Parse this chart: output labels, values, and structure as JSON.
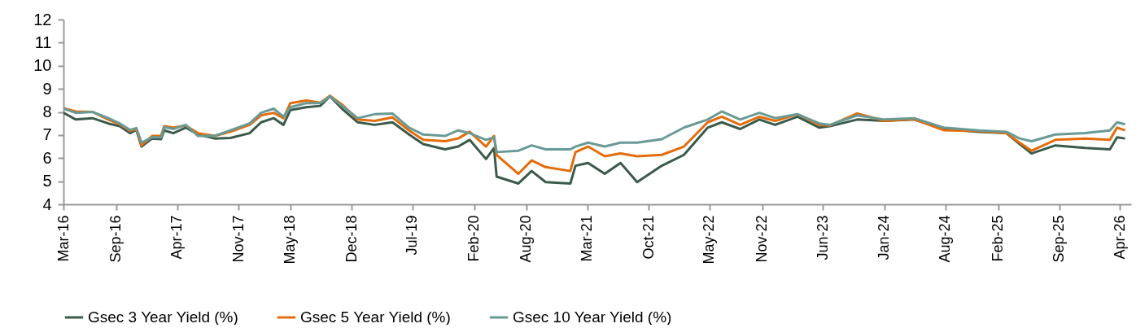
{
  "chart_data": {
    "type": "line",
    "x": [
      "2016-03-01",
      "2016-04-13",
      "2016-06-10",
      "2016-08-04",
      "2016-09-13",
      "2016-10-19",
      "2016-11-10",
      "2016-11-28",
      "2017-01-04",
      "2017-02-04",
      "2017-02-15",
      "2017-03-19",
      "2017-05-01",
      "2017-06-13",
      "2017-08-10",
      "2017-10-04",
      "2017-12-10",
      "2018-01-19",
      "2018-03-04",
      "2018-04-07",
      "2018-05-01",
      "2018-06-25",
      "2018-08-13",
      "2018-09-16",
      "2018-10-28",
      "2018-12-22",
      "2019-02-19",
      "2019-04-22",
      "2019-06-19",
      "2019-08-07",
      "2019-10-22",
      "2019-12-07",
      "2020-01-16",
      "2020-03-13",
      "2020-04-10",
      "2020-04-19",
      "2020-07-04",
      "2020-08-19",
      "2020-10-07",
      "2021-01-01",
      "2021-01-19",
      "2021-03-04",
      "2021-05-01",
      "2021-06-25",
      "2021-08-22",
      "2021-11-16",
      "2022-02-01",
      "2022-04-25",
      "2022-06-13",
      "2022-08-16",
      "2022-10-22",
      "2022-12-16",
      "2023-03-04",
      "2023-05-19",
      "2023-06-25",
      "2023-09-28",
      "2024-01-01",
      "2024-04-13",
      "2024-07-25",
      "2024-11-25",
      "2025-03-01",
      "2025-04-16",
      "2025-05-28",
      "2025-08-19",
      "2025-12-01",
      "2026-02-25",
      "2026-03-22",
      "2026-04-19"
    ],
    "series": [
      {
        "name": "Gsec 3 Year Yield (%)",
        "color": "#3a5a4b",
        "values": [
          7.96,
          7.67,
          7.73,
          7.5,
          7.38,
          7.08,
          7.22,
          6.5,
          6.85,
          6.82,
          7.2,
          7.08,
          7.32,
          7.02,
          6.85,
          6.87,
          7.08,
          7.55,
          7.73,
          7.44,
          8.08,
          8.2,
          8.26,
          8.67,
          8.14,
          7.55,
          7.44,
          7.55,
          7.02,
          6.61,
          6.38,
          6.5,
          6.79,
          5.96,
          6.44,
          5.2,
          4.9,
          5.44,
          4.96,
          4.9,
          5.67,
          5.79,
          5.32,
          5.79,
          4.96,
          5.67,
          6.14,
          7.32,
          7.55,
          7.26,
          7.67,
          7.44,
          7.79,
          7.32,
          7.38,
          7.67,
          7.61,
          7.67,
          7.26,
          7.14,
          7.08,
          6.61,
          6.2,
          6.55,
          6.44,
          6.38,
          6.9,
          6.85
        ]
      },
      {
        "name": "Gsec 5 Year Yield (%)",
        "color": "#e46c0a",
        "values": [
          8.16,
          8.02,
          8.0,
          7.67,
          7.46,
          7.18,
          7.25,
          6.55,
          6.96,
          6.96,
          7.38,
          7.32,
          7.41,
          7.08,
          6.96,
          7.14,
          7.44,
          7.85,
          7.96,
          7.73,
          8.38,
          8.49,
          8.4,
          8.7,
          8.32,
          7.67,
          7.61,
          7.76,
          7.2,
          6.79,
          6.73,
          6.85,
          7.14,
          6.5,
          6.96,
          6.14,
          5.32,
          5.9,
          5.61,
          5.44,
          6.26,
          6.5,
          6.08,
          6.2,
          6.08,
          6.14,
          6.5,
          7.55,
          7.79,
          7.44,
          7.79,
          7.61,
          7.9,
          7.44,
          7.41,
          7.93,
          7.61,
          7.69,
          7.21,
          7.17,
          7.08,
          6.67,
          6.32,
          6.79,
          6.85,
          6.79,
          7.32,
          7.2
        ]
      },
      {
        "name": "Gsec 10 Year Yield (%)",
        "color": "#6a9a95",
        "values": [
          8.14,
          7.96,
          8.0,
          7.73,
          7.5,
          7.22,
          7.3,
          6.67,
          6.9,
          6.9,
          7.34,
          7.26,
          7.44,
          6.96,
          6.96,
          7.2,
          7.5,
          7.96,
          8.14,
          7.79,
          8.2,
          8.38,
          8.38,
          8.67,
          8.26,
          7.73,
          7.9,
          7.93,
          7.32,
          7.02,
          6.96,
          7.2,
          7.08,
          6.79,
          6.9,
          6.26,
          6.32,
          6.55,
          6.38,
          6.38,
          6.5,
          6.67,
          6.5,
          6.67,
          6.67,
          6.82,
          7.32,
          7.67,
          8.02,
          7.67,
          7.96,
          7.73,
          7.9,
          7.5,
          7.44,
          7.85,
          7.67,
          7.73,
          7.32,
          7.2,
          7.14,
          6.85,
          6.73,
          7.02,
          7.08,
          7.2,
          7.55,
          7.46
        ]
      }
    ],
    "xlim": [
      "2016-03-01",
      "2026-05-10"
    ],
    "xticks": [
      {
        "value": "2016-03",
        "label": "Mar-16"
      },
      {
        "value": "2016-09",
        "label": "Sep-16"
      },
      {
        "value": "2017-04",
        "label": "Apr-17"
      },
      {
        "value": "2017-11",
        "label": "Nov-17"
      },
      {
        "value": "2018-05",
        "label": "May-18"
      },
      {
        "value": "2018-12",
        "label": "Dec-18"
      },
      {
        "value": "2019-07",
        "label": "Jul-19"
      },
      {
        "value": "2020-02",
        "label": "Feb-20"
      },
      {
        "value": "2020-08",
        "label": "Aug-20"
      },
      {
        "value": "2021-03",
        "label": "Mar-21"
      },
      {
        "value": "2021-10",
        "label": "Oct-21"
      },
      {
        "value": "2022-05",
        "label": "May-22"
      },
      {
        "value": "2022-11",
        "label": "Nov-22"
      },
      {
        "value": "2023-06",
        "label": "Jun-23"
      },
      {
        "value": "2024-01",
        "label": "Jan-24"
      },
      {
        "value": "2024-08",
        "label": "Aug-24"
      },
      {
        "value": "2025-02",
        "label": "Feb-25"
      },
      {
        "value": "2025-09",
        "label": "Sep-25"
      },
      {
        "value": "2026-04",
        "label": "Apr-26"
      }
    ],
    "ylim": [
      4,
      12
    ],
    "yticks": [
      4,
      5,
      6,
      7,
      8,
      9,
      10,
      11,
      12
    ],
    "grid": false,
    "legend": "bottom",
    "marker": "none",
    "line_style": "solid"
  }
}
